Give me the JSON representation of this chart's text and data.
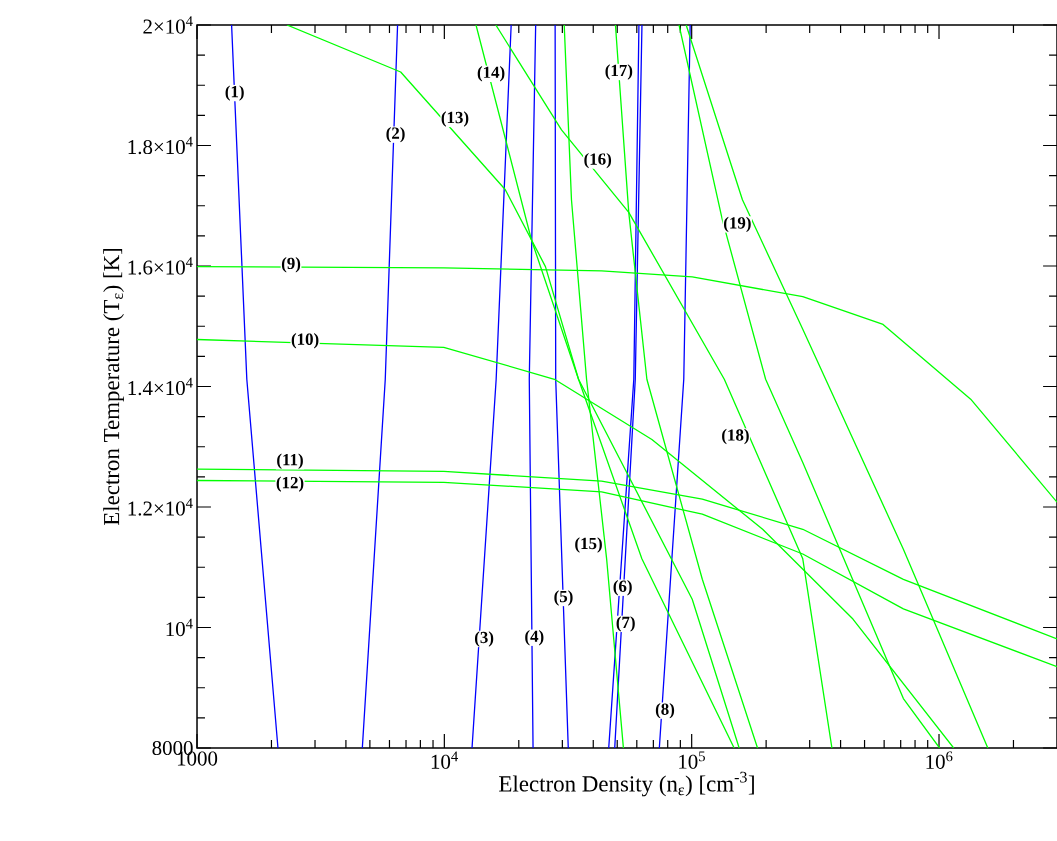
{
  "chart_data": {
    "type": "line",
    "xlabel": "Electron Density (n$_{ε}$) [cm$^{-3}$]",
    "ylabel": "Electron Temperature (T$_{ε}$) [K]",
    "log": "x",
    "xlim": [
      1000,
      3000000
    ],
    "ylim": [
      8000,
      20000
    ],
    "xticks": [
      1000,
      {
        "value": 2000,
        "label": null
      },
      {
        "value": 3000,
        "label": null
      },
      {
        "value": 4000,
        "label": null
      },
      {
        "value": 5000,
        "label": null
      },
      {
        "value": 6000,
        "label": null
      },
      {
        "value": 7000,
        "label": null
      },
      {
        "value": 8000,
        "label": null
      },
      {
        "value": 9000,
        "label": null
      },
      {
        "value": 10000,
        "label": "10$^{4}$"
      },
      {
        "value": 20000,
        "label": null
      },
      {
        "value": 30000,
        "label": null
      },
      {
        "value": 40000,
        "label": null
      },
      {
        "value": 50000,
        "label": null
      },
      {
        "value": 60000,
        "label": null
      },
      {
        "value": 70000,
        "label": null
      },
      {
        "value": 80000,
        "label": null
      },
      {
        "value": 90000,
        "label": null
      },
      {
        "value": 100000,
        "label": "10$^{5}$"
      },
      {
        "value": 200000,
        "label": null
      },
      {
        "value": 300000,
        "label": null
      },
      {
        "value": 400000,
        "label": null
      },
      {
        "value": 500000,
        "label": null
      },
      {
        "value": 600000,
        "label": null
      },
      {
        "value": 700000,
        "label": null
      },
      {
        "value": 800000,
        "label": null
      },
      {
        "value": 900000,
        "label": null
      },
      {
        "value": 1000000,
        "label": "10$^{6}$"
      },
      {
        "value": 2000000,
        "label": null
      }
    ],
    "yticks": [
      8000,
      {
        "value": 10000,
        "label": "10$^{4}$"
      },
      {
        "value": 12000,
        "label": "1.2×10$^{4}$"
      },
      {
        "value": 14000,
        "label": "1.4×10$^{4}$"
      },
      {
        "value": 16000,
        "label": "1.6×10$^{4}$"
      },
      {
        "value": 18000,
        "label": "1.8×10$^{4}$"
      },
      {
        "value": 20000,
        "label": "2×10$^{4}$"
      }
    ],
    "marker": "none",
    "line_style": "solid",
    "series": [
      {
        "color": "#0000ff",
        "x": [
          1380,
          1590,
          2125
        ],
        "values": [
          20000,
          14120,
          8000
        ]
      },
      {
        "color": "#0000ff",
        "x": [
          6470,
          5770,
          4660
        ],
        "values": [
          20000,
          14120,
          8000
        ]
      },
      {
        "color": "#0000ff",
        "x": [
          18630,
          16200,
          12940
        ],
        "values": [
          20000,
          14120,
          8000
        ]
      },
      {
        "color": "#0000ff",
        "x": [
          23400,
          22050,
          22840
        ],
        "values": [
          20000,
          14120,
          8000
        ]
      },
      {
        "color": "#0000ff",
        "x": [
          28050,
          28200,
          31700
        ],
        "values": [
          20000,
          14120,
          8000
        ]
      },
      {
        "color": "#0000ff",
        "x": [
          61200,
          58350,
          46200
        ],
        "values": [
          20000,
          14120,
          8000
        ]
      },
      {
        "color": "#0000ff",
        "x": [
          62950,
          59150,
          48850
        ],
        "values": [
          20000,
          14120,
          8000
        ]
      },
      {
        "color": "#0000ff",
        "x": [
          98600,
          92900,
          74000
        ],
        "values": [
          20000,
          14120,
          8000
        ]
      },
      {
        "color": "#00ff00",
        "x": [
          1000,
          9950,
          43250,
          100500,
          281300,
          594000,
          1343000,
          3000000
        ],
        "values": [
          15990,
          15970,
          15920,
          15820,
          15490,
          15030,
          13790,
          12080
        ]
      },
      {
        "color": "#00ff00",
        "x": [
          1000,
          9950,
          27870,
          69050,
          193600,
          448700,
          1146000
        ],
        "values": [
          14780,
          14650,
          14120,
          13120,
          11630,
          10140,
          8000
        ]
      },
      {
        "color": "#00ff00",
        "x": [
          1000,
          9950,
          43250,
          110400,
          281300,
          717800,
          3000000
        ],
        "values": [
          12630,
          12590,
          12430,
          12130,
          11630,
          10800,
          9810
        ]
      },
      {
        "color": "#00ff00",
        "x": [
          1000,
          9950,
          43250,
          110400,
          281300,
          717800,
          3000000
        ],
        "values": [
          12440,
          12410,
          12250,
          11880,
          11220,
          10310,
          9350
        ]
      },
      {
        "color": "#00ff00",
        "x": [
          2310,
          6660,
          17620,
          25630,
          34880,
          100500,
          155600
        ],
        "values": [
          20000,
          19220,
          17270,
          15990,
          14120,
          10470,
          8000
        ]
      },
      {
        "color": "#00ff00",
        "x": [
          13430,
          22480,
          34880,
          62900,
          148500
        ],
        "values": [
          20000,
          16440,
          14120,
          11140,
          8000
        ]
      },
      {
        "color": "#00ff00",
        "x": [
          30530,
          32660,
          37580,
          45300,
          52970
        ],
        "values": [
          20000,
          17100,
          14120,
          11140,
          8000
        ]
      },
      {
        "color": "#00ff00",
        "x": [
          16150,
          29770,
          55670,
          135500,
          281300,
          369000
        ],
        "values": [
          20000,
          18260,
          16890,
          14120,
          11140,
          8000
        ]
      },
      {
        "color": "#00ff00",
        "x": [
          49180,
          55670,
          65900,
          110400,
          184600
        ],
        "values": [
          20000,
          16890,
          14120,
          10800,
          8000
        ]
      },
      {
        "color": "#00ff00",
        "x": [
          88900,
          133000,
          199100,
          281300,
          717800,
          1005000
        ],
        "values": [
          20000,
          16770,
          14120,
          12740,
          8820,
          8000
        ]
      },
      {
        "color": "#00ff00",
        "x": [
          95000,
          160400,
          281300,
          717800,
          1575000
        ],
        "values": [
          20000,
          17100,
          14950,
          11300,
          8000
        ]
      }
    ],
    "annotations": [
      {
        "text": "(1)",
        "x": 1420,
        "y": 18870
      },
      {
        "text": "(2)",
        "x": 6350,
        "y": 18180
      },
      {
        "text": "(3)",
        "x": 14480,
        "y": 9810
      },
      {
        "text": "(4)",
        "x": 23110,
        "y": 9830
      },
      {
        "text": "(5)",
        "x": 30320,
        "y": 10490
      },
      {
        "text": "(6)",
        "x": 52600,
        "y": 10660
      },
      {
        "text": "(7)",
        "x": 54100,
        "y": 10060
      },
      {
        "text": "(8)",
        "x": 78000,
        "y": 8620
      },
      {
        "text": "(9)",
        "x": 2400,
        "y": 16020
      },
      {
        "text": "(10)",
        "x": 2735,
        "y": 14760
      },
      "(11)",
      {
        "text": "(12)",
        "x": 2377,
        "y": 12380
      },
      "(13)",
      {
        "text": "(14)",
        "x": 15450,
        "y": 19190
      },
      "(15)",
      "(16)",
      {
        "text": "(17)",
        "x": 50760,
        "y": 19220
      },
      "(18)",
      {
        "text": "(19)",
        "x": 153000,
        "y": 16690
      }
    ]
  }
}
